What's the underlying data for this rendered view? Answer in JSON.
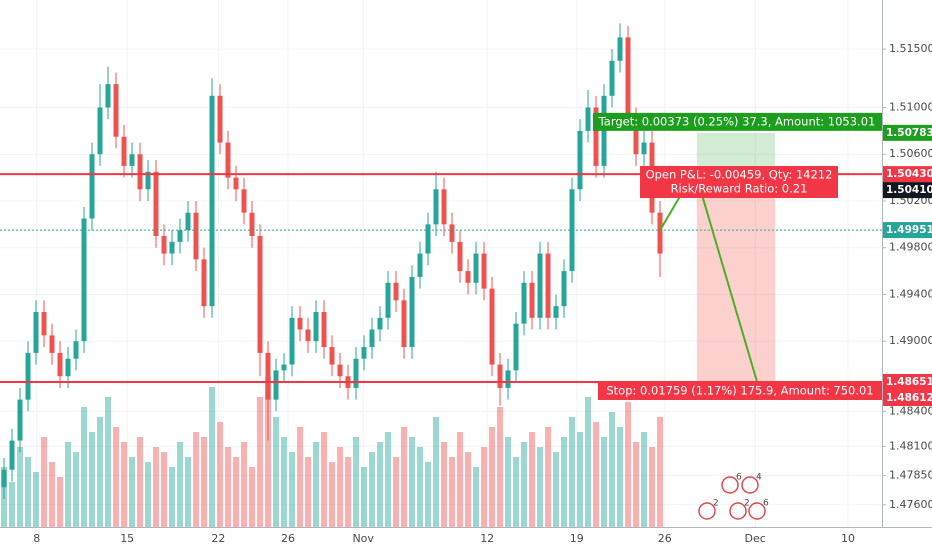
{
  "chart_data": {
    "type": "candlestick",
    "up_color": "#26a69a",
    "down_color": "#ef5350",
    "grid": true,
    "xlim": [
      -0.5,
      109.75
    ],
    "xticks": [
      {
        "value": 4.1,
        "label": "8"
      },
      {
        "value": 15.4,
        "label": "15"
      },
      {
        "value": 26.8,
        "label": "22"
      },
      {
        "value": 35.5,
        "label": "26"
      },
      {
        "value": 44.9,
        "label": "Nov"
      },
      {
        "value": 60.4,
        "label": "12"
      },
      {
        "value": 71.6,
        "label": "19"
      },
      {
        "value": 82.6,
        "label": "26"
      },
      {
        "value": 93.9,
        "label": "Dec"
      },
      {
        "value": 105.5,
        "label": "10"
      }
    ],
    "ylim": [
      1.4741,
      1.5192
    ],
    "yticks": [
      {
        "value": 1.515,
        "label": "1.51500"
      },
      {
        "value": 1.51,
        "label": "1.51000"
      },
      {
        "value": 1.506,
        "label": "1.50600"
      },
      {
        "value": 1.502,
        "label": "1.50200"
      },
      {
        "value": 1.498,
        "label": "1.49800"
      },
      {
        "value": 1.494,
        "label": "1.49400"
      },
      {
        "value": 1.49,
        "label": "1.49000"
      },
      {
        "value": 1.484,
        "label": "1.48400"
      },
      {
        "value": 1.481,
        "label": "1.48100"
      },
      {
        "value": 1.4785,
        "label": "1.47850"
      },
      {
        "value": 1.476,
        "label": "1.47600"
      }
    ],
    "open": [
      1.4775,
      1.479,
      1.4815,
      1.485,
      1.489,
      1.4925,
      1.4905,
      1.489,
      1.487,
      1.4885,
      1.49,
      1.5005,
      1.506,
      1.51,
      1.512,
      1.5075,
      1.505,
      1.506,
      1.503,
      1.5045,
      1.499,
      1.4975,
      1.4985,
      1.4995,
      1.501,
      1.497,
      1.493,
      1.511,
      1.507,
      1.504,
      1.503,
      1.501,
      1.499,
      1.489,
      1.485,
      1.4875,
      1.488,
      1.492,
      1.491,
      1.49,
      1.4925,
      1.4895,
      1.488,
      1.487,
      1.486,
      1.4885,
      1.4895,
      1.491,
      1.492,
      1.495,
      1.4935,
      1.4895,
      1.4955,
      1.4975,
      1.5,
      1.503,
      1.5,
      1.4985,
      1.496,
      1.495,
      1.4975,
      1.4945,
      1.488,
      1.486,
      1.4875,
      1.4915,
      1.495,
      1.492,
      1.4975,
      1.492,
      1.493,
      1.496,
      1.503,
      1.508,
      1.51,
      1.505,
      1.511,
      1.514,
      1.516,
      1.509,
      1.506,
      1.507,
      1.501
    ],
    "high": [
      1.48,
      1.4825,
      1.486,
      1.49,
      1.4935,
      1.4935,
      1.4915,
      1.49,
      1.4895,
      1.491,
      1.5015,
      1.507,
      1.512,
      1.5135,
      1.513,
      1.5085,
      1.507,
      1.507,
      1.5055,
      1.5055,
      1.5,
      1.4995,
      1.5005,
      1.502,
      1.502,
      1.498,
      1.5125,
      1.512,
      1.508,
      1.505,
      1.504,
      1.502,
      1.5,
      1.49,
      1.4885,
      1.489,
      1.493,
      1.493,
      1.492,
      1.4935,
      1.4935,
      1.4905,
      1.489,
      1.488,
      1.4895,
      1.4905,
      1.492,
      1.493,
      1.496,
      1.496,
      1.4945,
      1.4965,
      1.4985,
      1.501,
      1.5045,
      1.504,
      1.501,
      1.4995,
      1.497,
      1.4985,
      1.4985,
      1.4955,
      1.489,
      1.4885,
      1.4925,
      1.496,
      1.496,
      1.4985,
      1.4985,
      1.494,
      1.497,
      1.504,
      1.509,
      1.5115,
      1.511,
      1.512,
      1.515,
      1.5172,
      1.517,
      1.51,
      1.508,
      1.508,
      1.502
    ],
    "low": [
      1.4765,
      1.478,
      1.4805,
      1.484,
      1.488,
      1.4895,
      1.488,
      1.486,
      1.486,
      1.4875,
      1.489,
      1.4995,
      1.505,
      1.509,
      1.5065,
      1.504,
      1.504,
      1.502,
      1.502,
      1.498,
      1.4965,
      1.4965,
      1.4975,
      1.4985,
      1.496,
      1.492,
      1.492,
      1.506,
      1.503,
      1.502,
      1.5,
      1.498,
      1.487,
      1.4815,
      1.484,
      1.4865,
      1.487,
      1.49,
      1.489,
      1.489,
      1.4885,
      1.487,
      1.486,
      1.485,
      1.485,
      1.4875,
      1.4885,
      1.49,
      1.491,
      1.4925,
      1.4885,
      1.4885,
      1.4945,
      1.4965,
      1.499,
      1.499,
      1.4975,
      1.495,
      1.494,
      1.494,
      1.4935,
      1.487,
      1.4845,
      1.485,
      1.4865,
      1.4905,
      1.491,
      1.491,
      1.491,
      1.491,
      1.492,
      1.495,
      1.502,
      1.507,
      1.504,
      1.504,
      1.51,
      1.513,
      1.508,
      1.505,
      1.505,
      1.5,
      1.4955
    ],
    "close": [
      1.479,
      1.4815,
      1.485,
      1.489,
      1.4925,
      1.4905,
      1.489,
      1.487,
      1.4885,
      1.49,
      1.5005,
      1.506,
      1.51,
      1.512,
      1.5075,
      1.505,
      1.506,
      1.503,
      1.5045,
      1.499,
      1.4975,
      1.4985,
      1.4995,
      1.501,
      1.497,
      1.493,
      1.511,
      1.507,
      1.504,
      1.503,
      1.501,
      1.499,
      1.489,
      1.485,
      1.4875,
      1.488,
      1.492,
      1.491,
      1.49,
      1.4925,
      1.4895,
      1.488,
      1.487,
      1.486,
      1.4885,
      1.4895,
      1.491,
      1.492,
      1.495,
      1.4935,
      1.4895,
      1.4955,
      1.4975,
      1.5,
      1.503,
      1.5,
      1.4985,
      1.496,
      1.495,
      1.4975,
      1.4945,
      1.488,
      1.486,
      1.4875,
      1.4915,
      1.495,
      1.492,
      1.4975,
      1.492,
      1.493,
      1.496,
      1.503,
      1.508,
      1.51,
      1.505,
      1.511,
      1.514,
      1.516,
      1.509,
      1.506,
      1.507,
      1.501,
      1.4975
    ],
    "volume": [
      60,
      45,
      80,
      70,
      55,
      90,
      65,
      50,
      85,
      75,
      120,
      95,
      110,
      130,
      100,
      85,
      70,
      90,
      65,
      80,
      75,
      60,
      85,
      70,
      95,
      90,
      140,
      105,
      80,
      70,
      85,
      60,
      130,
      150,
      110,
      90,
      75,
      100,
      70,
      85,
      95,
      65,
      80,
      70,
      90,
      60,
      75,
      85,
      95,
      70,
      100,
      90,
      80,
      65,
      110,
      85,
      70,
      95,
      75,
      60,
      80,
      100,
      120,
      90,
      70,
      85,
      95,
      80,
      100,
      75,
      90,
      110,
      95,
      130,
      105,
      90,
      115,
      100,
      125,
      85,
      95,
      80,
      110
    ],
    "horizontal_lines": [
      {
        "value": 1.5043,
        "color": "#f23645"
      },
      {
        "value": 1.48651,
        "color": "#f23645"
      },
      {
        "value": 1.49951,
        "color": "#26a69a",
        "dashed": true
      }
    ],
    "price_labels": [
      {
        "value": 1.50783,
        "label": "1.50783",
        "color": "#1e9e1e"
      },
      {
        "value": 1.5043,
        "label": "1.50430",
        "color": "#f23645"
      },
      {
        "value": 1.5041,
        "label": "1.50410",
        "color": "#131722"
      },
      {
        "value": 1.49951,
        "label": "1.49951",
        "color": "#26a69a"
      },
      {
        "value": 1.48651,
        "label": "1.48651",
        "color": "#f23645"
      },
      {
        "value": 1.48612,
        "label": "1.48612",
        "color": "#f23645"
      }
    ],
    "position": {
      "start": 86.6,
      "end": 96.4,
      "entry": 1.5041,
      "target": 1.50783,
      "stop": 1.48651,
      "target_text": "Target: 0.00373 (0.25%) 37.3, Amount: 1053.01",
      "pnl_text": "Open P&L: -0.00459, Qty: 14212",
      "ratio_text": "Risk/Reward Ratio: 0.21",
      "stop_text": "Stop: 0.01759 (1.17%) 175.9, Amount: 750.01"
    },
    "projection": {
      "x": [
        82,
        84.5,
        87,
        94.1
      ],
      "y": [
        1.4995,
        1.5024,
        1.5031,
        1.4866
      ],
      "color": "#4caf24"
    },
    "events": [
      "6",
      "4",
      "2",
      "2",
      "6"
    ]
  }
}
